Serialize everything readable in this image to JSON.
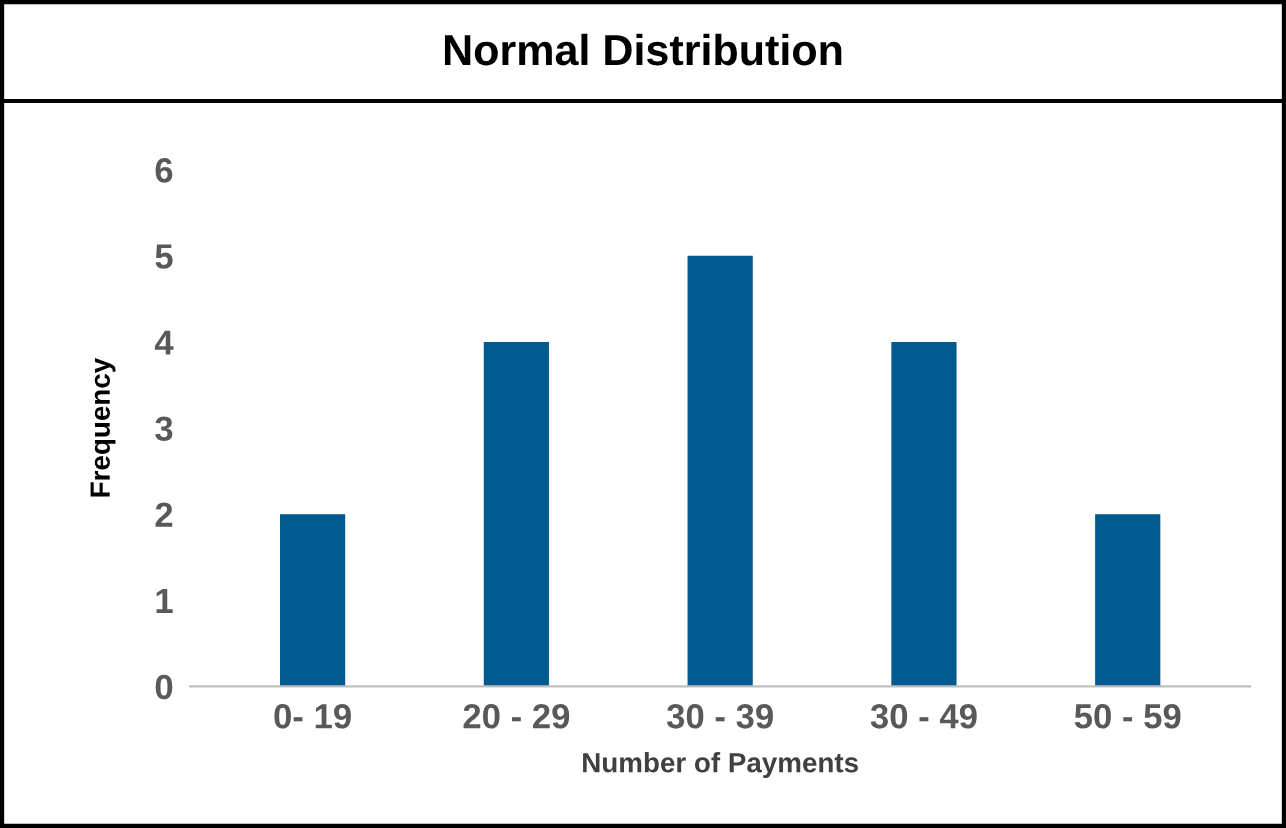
{
  "chart_data": {
    "type": "bar",
    "title": "Normal Distribution",
    "xlabel": "Number of Payments",
    "ylabel": "Frequency",
    "categories": [
      "0- 19",
      "20 - 29",
      "30 - 39",
      "30 - 49",
      "50 - 59"
    ],
    "values": [
      2,
      4,
      5,
      4,
      2
    ],
    "color": "#005a8e",
    "ylim": [
      0,
      6
    ],
    "yticks": [
      0,
      1,
      2,
      3,
      4,
      5,
      6
    ],
    "grid": false,
    "legend": false
  }
}
